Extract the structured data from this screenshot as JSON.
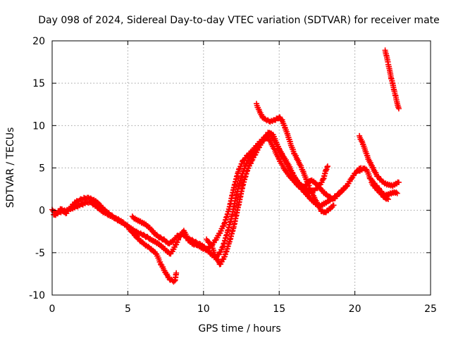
{
  "chart_data": {
    "type": "scatter",
    "title": "Day 098 of 2024, Sidereal Day-to-day VTEC variation (SDTVAR) for receiver mate",
    "xlabel": "GPS time / hours",
    "ylabel": "SDTVAR / TECUs",
    "xlim": [
      0,
      25
    ],
    "ylim": [
      -10,
      20
    ],
    "xticks": [
      "0",
      "5",
      "10",
      "15",
      "20",
      "25"
    ],
    "yticks": [
      "-10",
      "-5",
      "0",
      "5",
      "10",
      "15",
      "20"
    ],
    "grid": true,
    "marker": "+",
    "color": "#ff0000",
    "series": [
      {
        "points": [
          [
            0.0,
            0.0
          ],
          [
            0.3,
            -0.3
          ],
          [
            0.6,
            0.2
          ],
          [
            0.9,
            -0.4
          ],
          [
            1.2,
            0.3
          ],
          [
            1.5,
            0.9
          ],
          [
            1.8,
            1.2
          ],
          [
            2.1,
            1.4
          ],
          [
            2.4,
            1.5
          ],
          [
            2.7,
            1.3
          ],
          [
            3.0,
            0.9
          ],
          [
            3.3,
            0.3
          ],
          [
            3.6,
            -0.2
          ],
          [
            3.9,
            -0.6
          ],
          [
            4.2,
            -1.0
          ],
          [
            4.5,
            -1.3
          ],
          [
            4.8,
            -1.6
          ],
          [
            5.1,
            -2.0
          ],
          [
            5.4,
            -2.4
          ],
          [
            5.7,
            -2.7
          ],
          [
            6.0,
            -2.9
          ],
          [
            6.3,
            -3.2
          ],
          [
            6.6,
            -3.5
          ],
          [
            6.9,
            -3.8
          ],
          [
            7.2,
            -4.2
          ],
          [
            7.5,
            -4.7
          ],
          [
            7.8,
            -5.2
          ],
          [
            8.1,
            -4.3
          ],
          [
            8.4,
            -3.2
          ],
          [
            8.7,
            -2.4
          ],
          [
            9.0,
            -3.5
          ],
          [
            9.3,
            -4.0
          ],
          [
            9.6,
            -4.1
          ],
          [
            9.9,
            -4.5
          ],
          [
            10.2,
            -4.7
          ],
          [
            10.5,
            -4.2
          ],
          [
            10.8,
            -3.5
          ],
          [
            11.1,
            -2.6
          ],
          [
            11.4,
            -1.5
          ],
          [
            11.7,
            0.2
          ],
          [
            12.0,
            2.6
          ],
          [
            12.3,
            4.6
          ],
          [
            12.6,
            5.8
          ],
          [
            12.9,
            6.5
          ],
          [
            13.2,
            7.0
          ],
          [
            13.5,
            7.6
          ],
          [
            13.8,
            8.2
          ],
          [
            14.1,
            8.7
          ],
          [
            14.4,
            8.2
          ],
          [
            14.7,
            7.1
          ],
          [
            15.0,
            6.0
          ],
          [
            15.3,
            5.0
          ],
          [
            15.6,
            4.2
          ],
          [
            15.9,
            3.6
          ],
          [
            16.2,
            3.0
          ],
          [
            16.5,
            2.5
          ],
          [
            16.8,
            1.9
          ],
          [
            17.1,
            1.3
          ],
          [
            17.4,
            0.8
          ],
          [
            17.7,
            0.5
          ],
          [
            18.0,
            0.8
          ],
          [
            18.3,
            1.1
          ],
          [
            18.6,
            1.5
          ],
          [
            18.9,
            1.9
          ],
          [
            19.2,
            2.4
          ],
          [
            19.5,
            3.0
          ],
          [
            19.8,
            3.8
          ],
          [
            20.1,
            4.6
          ],
          [
            20.4,
            5.0
          ]
        ]
      },
      {
        "points": [
          [
            0.1,
            -0.6
          ],
          [
            0.5,
            -0.2
          ],
          [
            0.9,
            0.0
          ],
          [
            1.3,
            0.2
          ],
          [
            1.7,
            0.5
          ],
          [
            2.1,
            0.8
          ],
          [
            2.5,
            1.0
          ],
          [
            2.9,
            0.5
          ],
          [
            3.3,
            -0.1
          ],
          [
            3.7,
            -0.5
          ],
          [
            4.1,
            -0.9
          ],
          [
            4.5,
            -1.2
          ],
          [
            4.9,
            -1.8
          ],
          [
            5.3,
            -2.6
          ],
          [
            5.7,
            -3.4
          ],
          [
            6.1,
            -4.0
          ],
          [
            6.5,
            -4.5
          ],
          [
            6.9,
            -5.2
          ],
          [
            7.2,
            -6.4
          ],
          [
            7.5,
            -7.4
          ],
          [
            7.8,
            -8.2
          ],
          [
            8.1,
            -8.4
          ],
          [
            8.2,
            -7.4
          ]
        ]
      },
      {
        "points": [
          [
            5.3,
            -0.8
          ],
          [
            5.6,
            -1.1
          ],
          [
            5.9,
            -1.4
          ],
          [
            6.2,
            -1.7
          ],
          [
            6.5,
            -2.2
          ],
          [
            6.8,
            -2.8
          ],
          [
            7.1,
            -3.2
          ],
          [
            7.4,
            -3.5
          ],
          [
            7.7,
            -3.9
          ],
          [
            8.0,
            -3.6
          ],
          [
            8.3,
            -3.0
          ],
          [
            8.6,
            -2.8
          ],
          [
            8.9,
            -3.3
          ],
          [
            9.2,
            -3.5
          ],
          [
            9.5,
            -3.8
          ],
          [
            9.8,
            -4.0
          ],
          [
            10.1,
            -4.4
          ],
          [
            10.4,
            -5.0
          ],
          [
            10.7,
            -5.5
          ],
          [
            11.0,
            -5.3
          ],
          [
            11.3,
            -4.2
          ],
          [
            11.6,
            -2.5
          ],
          [
            11.9,
            -0.5
          ],
          [
            12.2,
            2.0
          ],
          [
            12.5,
            4.0
          ],
          [
            12.8,
            5.4
          ],
          [
            13.1,
            6.3
          ],
          [
            13.4,
            7.0
          ],
          [
            13.7,
            7.8
          ],
          [
            14.0,
            8.4
          ],
          [
            14.3,
            9.2
          ],
          [
            14.6,
            8.9
          ],
          [
            14.9,
            7.6
          ],
          [
            15.2,
            6.4
          ],
          [
            15.5,
            5.4
          ],
          [
            15.8,
            4.4
          ],
          [
            16.1,
            3.7
          ],
          [
            16.4,
            3.0
          ],
          [
            16.7,
            2.6
          ],
          [
            17.0,
            2.2
          ],
          [
            17.3,
            2.3
          ],
          [
            17.6,
            2.8
          ],
          [
            17.9,
            3.6
          ],
          [
            18.1,
            4.8
          ],
          [
            18.2,
            5.2
          ]
        ]
      },
      {
        "points": [
          [
            10.2,
            -3.5
          ],
          [
            10.5,
            -4.0
          ],
          [
            10.8,
            -5.5
          ],
          [
            11.1,
            -6.4
          ],
          [
            11.4,
            -5.4
          ],
          [
            11.7,
            -3.8
          ],
          [
            12.0,
            -1.9
          ],
          [
            12.3,
            0.5
          ],
          [
            12.6,
            3.0
          ],
          [
            12.9,
            4.8
          ],
          [
            13.2,
            5.9
          ],
          [
            13.5,
            6.9
          ],
          [
            13.8,
            7.9
          ],
          [
            14.1,
            8.5
          ],
          [
            14.4,
            9.0
          ],
          [
            14.7,
            8.2
          ],
          [
            15.0,
            7.2
          ],
          [
            15.3,
            6.3
          ],
          [
            15.6,
            5.4
          ],
          [
            15.9,
            4.3
          ],
          [
            16.2,
            3.3
          ],
          [
            16.5,
            2.8
          ],
          [
            16.8,
            3.0
          ],
          [
            17.1,
            3.6
          ],
          [
            17.4,
            3.2
          ],
          [
            17.7,
            2.6
          ],
          [
            18.0,
            2.0
          ],
          [
            18.3,
            1.6
          ],
          [
            18.6,
            1.3
          ],
          [
            18.9,
            1.9
          ],
          [
            19.2,
            2.5
          ],
          [
            19.5,
            2.9
          ]
        ]
      },
      {
        "points": [
          [
            13.5,
            12.5
          ],
          [
            13.7,
            11.7
          ],
          [
            13.9,
            11.0
          ],
          [
            14.1,
            10.7
          ],
          [
            14.4,
            10.5
          ],
          [
            14.7,
            10.6
          ],
          [
            15.0,
            11.0
          ],
          [
            15.2,
            10.6
          ],
          [
            15.4,
            9.7
          ],
          [
            15.6,
            8.7
          ],
          [
            15.8,
            7.6
          ],
          [
            16.0,
            6.7
          ],
          [
            16.2,
            6.0
          ],
          [
            16.4,
            5.3
          ],
          [
            16.6,
            4.5
          ],
          [
            16.8,
            3.6
          ],
          [
            17.0,
            2.7
          ],
          [
            17.2,
            1.9
          ],
          [
            17.4,
            1.2
          ],
          [
            17.6,
            0.5
          ],
          [
            17.8,
            -0.1
          ],
          [
            18.0,
            -0.3
          ],
          [
            18.2,
            0.0
          ],
          [
            18.4,
            0.3
          ],
          [
            18.6,
            0.6
          ]
        ]
      },
      {
        "points": [
          [
            20.2,
            4.6
          ],
          [
            20.4,
            4.8
          ],
          [
            20.6,
            5.0
          ],
          [
            20.8,
            4.7
          ],
          [
            21.0,
            3.8
          ],
          [
            21.2,
            3.3
          ],
          [
            21.4,
            2.9
          ],
          [
            21.6,
            2.5
          ],
          [
            21.8,
            2.1
          ],
          [
            22.0,
            1.8
          ],
          [
            22.2,
            1.9
          ],
          [
            22.4,
            2.0
          ],
          [
            22.6,
            2.1
          ],
          [
            22.8,
            2.0
          ]
        ]
      },
      {
        "points": [
          [
            20.3,
            8.7
          ],
          [
            20.5,
            8.0
          ],
          [
            20.7,
            7.0
          ],
          [
            20.9,
            6.0
          ],
          [
            21.1,
            5.3
          ],
          [
            21.3,
            4.6
          ],
          [
            21.5,
            4.0
          ],
          [
            21.7,
            3.6
          ],
          [
            21.9,
            3.3
          ],
          [
            22.1,
            3.1
          ],
          [
            22.3,
            3.0
          ],
          [
            22.5,
            2.9
          ],
          [
            22.7,
            3.1
          ],
          [
            22.9,
            3.3
          ]
        ]
      },
      {
        "points": [
          [
            21.1,
            3.2
          ],
          [
            21.3,
            2.8
          ],
          [
            21.5,
            2.4
          ],
          [
            21.7,
            2.0
          ],
          [
            21.9,
            1.6
          ],
          [
            22.0,
            1.4
          ],
          [
            22.2,
            1.3
          ]
        ]
      },
      {
        "points": [
          [
            22.0,
            18.8
          ],
          [
            22.1,
            18.2
          ],
          [
            22.2,
            17.3
          ],
          [
            22.3,
            16.5
          ],
          [
            22.4,
            15.6
          ],
          [
            22.5,
            14.9
          ],
          [
            22.6,
            14.1
          ],
          [
            22.7,
            13.4
          ],
          [
            22.8,
            12.6
          ],
          [
            22.9,
            12.0
          ]
        ]
      }
    ]
  }
}
